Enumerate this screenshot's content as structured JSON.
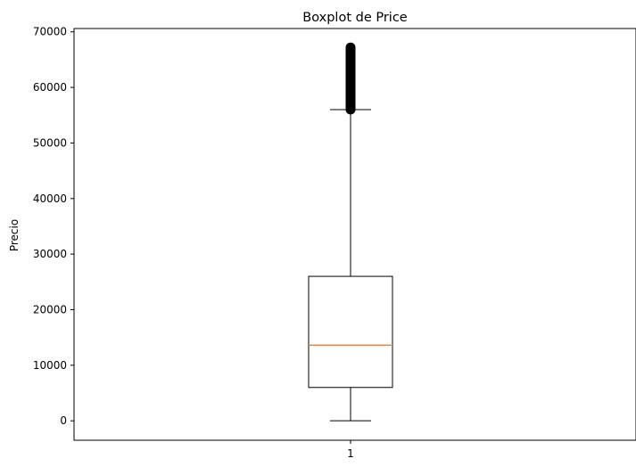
{
  "chart_data": {
    "type": "box",
    "title": "Boxplot de Price",
    "xlabel": "",
    "ylabel": "Precio",
    "categories": [
      "1"
    ],
    "ylim": [
      -3500,
      70600
    ],
    "yticks": [
      0,
      10000,
      20000,
      30000,
      40000,
      50000,
      60000,
      70000
    ],
    "ytick_labels": [
      "0",
      "10000",
      "20000",
      "30000",
      "40000",
      "50000",
      "60000",
      "70000"
    ],
    "grid": false,
    "box": {
      "category": "1",
      "whisker_low": 0,
      "q1": 6000,
      "median": 13600,
      "q3": 26000,
      "whisker_high": 56000,
      "outliers_range": [
        56000,
        67200
      ]
    },
    "colors": {
      "box": "#000000",
      "median": "#ff7f0e",
      "outliers": "#000000"
    }
  }
}
